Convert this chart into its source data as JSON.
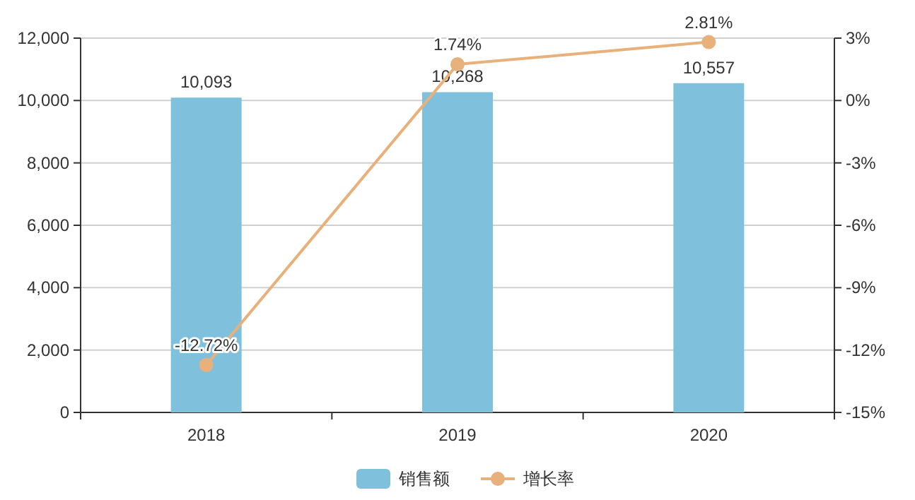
{
  "chart_data": {
    "type": "bar",
    "categories": [
      "2018",
      "2019",
      "2020"
    ],
    "series": [
      {
        "name": "销售额",
        "color": "#7fc1dd",
        "values": [
          10093,
          10268,
          10557
        ],
        "value_labels": [
          "10,093",
          "10,268",
          "10,557"
        ]
      },
      {
        "name": "增长率",
        "type": "line",
        "axis": "y2",
        "color": "#e8b07a",
        "marker": "circle",
        "values": [
          -12.72,
          1.74,
          2.81
        ],
        "value_labels": [
          "-12.72%",
          "1.74%",
          "2.81%"
        ]
      }
    ],
    "ylim": [
      0,
      12000
    ],
    "yticks": [
      0,
      {
        "value": 2000,
        "label": "2,000"
      },
      {
        "value": 4000,
        "label": "4,000"
      },
      {
        "value": 6000,
        "label": "6,000"
      },
      {
        "value": 8000,
        "label": "8,000"
      },
      {
        "value": 10000,
        "label": "10,000"
      },
      {
        "value": 12000,
        "label": "12,000"
      }
    ],
    "y2lim": [
      -15,
      3
    ],
    "y2ticks": [
      {
        "value": -15,
        "label": "-15%"
      },
      {
        "value": -12,
        "label": "-12%"
      },
      {
        "value": -9,
        "label": "-9%"
      },
      {
        "value": -6,
        "label": "-6%"
      },
      {
        "value": -3,
        "label": "-3%"
      },
      {
        "value": 0,
        "label": "0%"
      },
      {
        "value": 3,
        "label": "3%"
      }
    ],
    "grid": "y",
    "legend": "bottom"
  }
}
